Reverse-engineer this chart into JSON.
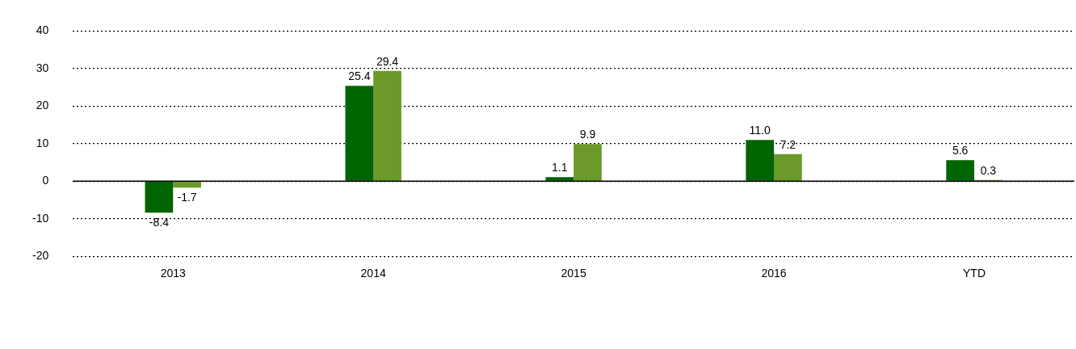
{
  "chart_data": {
    "type": "bar",
    "categories": [
      "2013",
      "2014",
      "2015",
      "2016",
      "YTD"
    ],
    "series": [
      {
        "color": "#006400",
        "values": [
          -8.4,
          25.4,
          1.1,
          11.0,
          5.6
        ],
        "value_labels": [
          "-8.4",
          "25.4",
          "1.1",
          "11.0",
          "5.6"
        ]
      },
      {
        "color": "#6b9a2a",
        "values": [
          -1.7,
          29.4,
          9.9,
          7.2,
          0.3
        ],
        "value_labels": [
          "-1.7",
          "29.4",
          "9.9",
          "7.2",
          "0.3"
        ]
      }
    ],
    "ylim": [
      -20,
      40
    ],
    "yticks": [
      -20,
      -10,
      0,
      10,
      20,
      30,
      40
    ],
    "grid": "y"
  }
}
